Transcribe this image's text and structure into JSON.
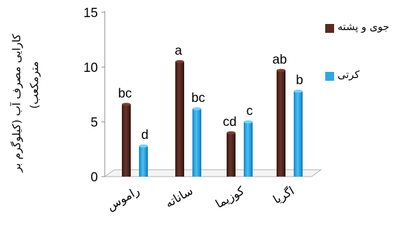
{
  "chart_data": {
    "type": "bar",
    "ylabel": "کارایی مصرف آب (کیلوگرم بر مترمکعب)",
    "ylabel_lines": [
      "کارایی مصرف آب (کیلوگرم بر",
      "مترمکعب)"
    ],
    "ylim": [
      0,
      15
    ],
    "yticks": [
      "0",
      "5",
      "10",
      "15"
    ],
    "categories": [
      "راموس",
      "ساناته",
      "کوزیما",
      "اگریا"
    ],
    "series": [
      {
        "name": "جوی و پشته",
        "values": [
          6.6,
          10.5,
          4.0,
          9.7
        ],
        "letters": [
          "bc",
          "a",
          "cd",
          "ab"
        ],
        "color": "#5a2a20"
      },
      {
        "name": "کرتی",
        "values": [
          2.8,
          6.2,
          5.0,
          7.8
        ],
        "letters": [
          "d",
          "bc",
          "c",
          "b"
        ],
        "color": "#2fa7e6"
      }
    ],
    "grid": false,
    "legend_position": "right"
  }
}
